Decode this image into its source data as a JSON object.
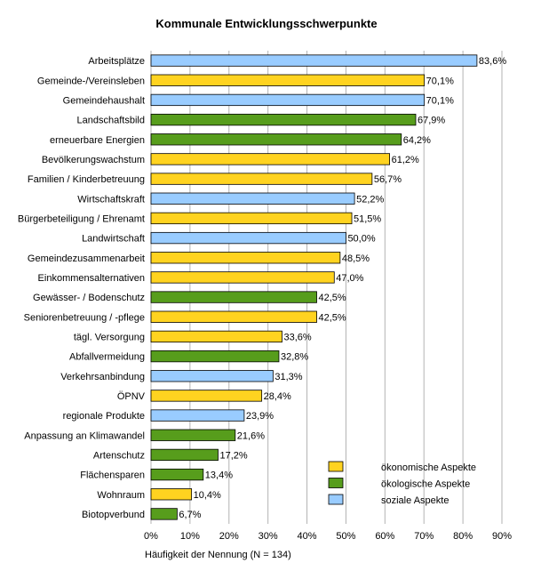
{
  "chart_data": {
    "type": "bar",
    "orientation": "horizontal",
    "title": "Kommunale Entwicklungsschwerpunkte",
    "xlabel": "Häufigkeit der Nennung (N = 134)",
    "ylabel": "",
    "xlim": [
      0,
      90
    ],
    "xticks": [
      "0%",
      "10%",
      "20%",
      "30%",
      "40%",
      "50%",
      "60%",
      "70%",
      "80%",
      "90%"
    ],
    "grid": "vertical",
    "legend_position": "bottom-right",
    "colors": {
      "oekonomisch": "#ffd320",
      "oekologisch": "#579d1c",
      "sozial": "#99ccff"
    },
    "legend": [
      {
        "key": "oekonomisch",
        "label": "ökonomische Aspekte"
      },
      {
        "key": "oekologisch",
        "label": "ökologische Aspekte"
      },
      {
        "key": "sozial",
        "label": "soziale Aspekte"
      }
    ],
    "bars": [
      {
        "category": "Arbeitsplätze",
        "value": 83.6,
        "label": "83,6%",
        "group": "sozial"
      },
      {
        "category": "Gemeinde-/Vereinsleben",
        "value": 70.1,
        "label": "70,1%",
        "group": "oekonomisch"
      },
      {
        "category": "Gemeindehaushalt",
        "value": 70.1,
        "label": "70,1%",
        "group": "sozial"
      },
      {
        "category": "Landschaftsbild",
        "value": 67.9,
        "label": "67,9%",
        "group": "oekologisch"
      },
      {
        "category": "erneuerbare Energien",
        "value": 64.2,
        "label": "64,2%",
        "group": "oekologisch"
      },
      {
        "category": "Bevölkerungswachstum",
        "value": 61.2,
        "label": "61,2%",
        "group": "oekonomisch"
      },
      {
        "category": "Familien / Kinderbetreuung",
        "value": 56.7,
        "label": "56,7%",
        "group": "oekonomisch"
      },
      {
        "category": "Wirtschaftskraft",
        "value": 52.2,
        "label": "52,2%",
        "group": "sozial"
      },
      {
        "category": "Bürgerbeteiligung / Ehrenamt",
        "value": 51.5,
        "label": "51,5%",
        "group": "oekonomisch"
      },
      {
        "category": "Landwirtschaft",
        "value": 50.0,
        "label": "50,0%",
        "group": "sozial"
      },
      {
        "category": "Gemeindezusammenarbeit",
        "value": 48.5,
        "label": "48,5%",
        "group": "oekonomisch"
      },
      {
        "category": "Einkommensalternativen",
        "value": 47.0,
        "label": "47,0%",
        "group": "oekonomisch"
      },
      {
        "category": "Gewässer- / Bodenschutz",
        "value": 42.5,
        "label": "42,5%",
        "group": "oekologisch"
      },
      {
        "category": "Seniorenbetreuung / -pflege",
        "value": 42.5,
        "label": "42,5%",
        "group": "oekonomisch"
      },
      {
        "category": "tägl. Versorgung",
        "value": 33.6,
        "label": "33,6%",
        "group": "oekonomisch"
      },
      {
        "category": "Abfallvermeidung",
        "value": 32.8,
        "label": "32,8%",
        "group": "oekologisch"
      },
      {
        "category": "Verkehrsanbindung",
        "value": 31.3,
        "label": "31,3%",
        "group": "sozial"
      },
      {
        "category": "ÖPNV",
        "value": 28.4,
        "label": "28,4%",
        "group": "oekonomisch"
      },
      {
        "category": "regionale Produkte",
        "value": 23.9,
        "label": "23,9%",
        "group": "sozial"
      },
      {
        "category": "Anpassung an Klimawandel",
        "value": 21.6,
        "label": "21,6%",
        "group": "oekologisch"
      },
      {
        "category": "Artenschutz",
        "value": 17.2,
        "label": "17,2%",
        "group": "oekologisch"
      },
      {
        "category": "Flächensparen",
        "value": 13.4,
        "label": "13,4%",
        "group": "oekologisch"
      },
      {
        "category": "Wohnraum",
        "value": 10.4,
        "label": "10,4%",
        "group": "oekonomisch"
      },
      {
        "category": "Biotopverbund",
        "value": 6.7,
        "label": "6,7%",
        "group": "oekologisch"
      }
    ]
  }
}
